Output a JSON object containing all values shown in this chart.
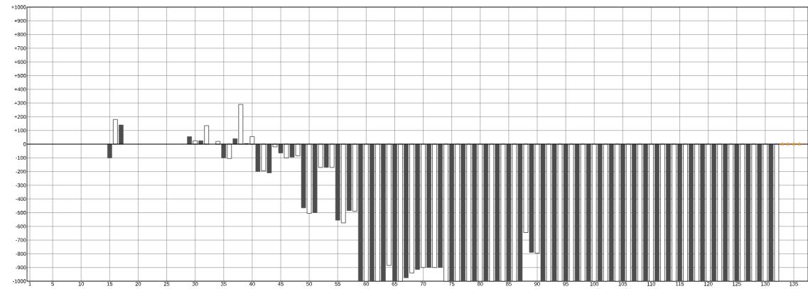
{
  "chart_data": {
    "type": "bar",
    "xlim": [
      0.5,
      137.5
    ],
    "xticks": [
      1,
      5,
      10,
      15,
      20,
      25,
      30,
      35,
      40,
      45,
      50,
      55,
      60,
      65,
      70,
      75,
      80,
      85,
      90,
      95,
      100,
      105,
      110,
      115,
      120,
      125,
      130,
      135
    ],
    "ylim": [
      -1000,
      1000
    ],
    "yticks": [
      {
        "value": 1000,
        "label": "+1000"
      },
      {
        "value": 900,
        "label": "+900"
      },
      {
        "value": 800,
        "label": "+800"
      },
      {
        "value": 700,
        "label": "+700"
      },
      {
        "value": 600,
        "label": "+600"
      },
      {
        "value": 500,
        "label": "+500"
      },
      {
        "value": 400,
        "label": "+400"
      },
      {
        "value": 300,
        "label": "+300"
      },
      {
        "value": 200,
        "label": "+200"
      },
      {
        "value": 100,
        "label": "+100"
      },
      0,
      -100,
      -200,
      -300,
      -400,
      -500,
      -600,
      -700,
      -800,
      -900,
      -1000
    ],
    "grid": true,
    "ref_lines": [
      {
        "axis": "y",
        "value": 0,
        "color": "#000000"
      }
    ],
    "series": [
      {
        "color": "#4d4d4d",
        "x": [
          15,
          17,
          29,
          31,
          35,
          37,
          39,
          41,
          43,
          45,
          47,
          49,
          51,
          53,
          55,
          57,
          59,
          61,
          63,
          65,
          67,
          69,
          71,
          73,
          75,
          77,
          79,
          81,
          83,
          85,
          87,
          89,
          91,
          93,
          95,
          97,
          99,
          101,
          103,
          105,
          107,
          109,
          111,
          113,
          115,
          117,
          119,
          121,
          123,
          125,
          127,
          129,
          131
        ],
        "values": [
          -100,
          140,
          55,
          25,
          -100,
          40,
          5,
          -200,
          -210,
          -65,
          -95,
          -465,
          -500,
          -170,
          -555,
          -485,
          -1000,
          -1000,
          -1000,
          -1000,
          -975,
          -915,
          -900,
          -900,
          -1000,
          -1000,
          -1000,
          -1000,
          -1000,
          -1000,
          -1000,
          -790,
          -1000,
          -1000,
          -1000,
          -1000,
          -1000,
          -1000,
          -1000,
          -1000,
          -1000,
          -1000,
          -1000,
          -1000,
          -1000,
          -1000,
          -1000,
          -1000,
          -1000,
          -1000,
          -1000,
          -1000,
          -1000
        ]
      },
      {
        "color": "#ffffff",
        "x": [
          16,
          30,
          32,
          34,
          36,
          38,
          40,
          42,
          44,
          46,
          48,
          50,
          52,
          54,
          56,
          58,
          60,
          62,
          64,
          66,
          68,
          70,
          72,
          74,
          76,
          78,
          80,
          82,
          84,
          86,
          88,
          90,
          92,
          94,
          96,
          98,
          100,
          102,
          104,
          106,
          108,
          110,
          112,
          114,
          116,
          118,
          120,
          122,
          124,
          126,
          128,
          130,
          132
        ],
        "values": [
          180,
          25,
          135,
          20,
          -105,
          290,
          55,
          -195,
          -20,
          -100,
          -85,
          -505,
          -170,
          -170,
          -575,
          -490,
          -1000,
          -1000,
          -885,
          -1000,
          -940,
          -900,
          -900,
          -1000,
          -1000,
          -1000,
          -1000,
          -1000,
          -1000,
          -1000,
          -645,
          -795,
          -1000,
          -1000,
          -1000,
          -1000,
          -1000,
          -1000,
          -1000,
          -1000,
          -1000,
          -1000,
          -1000,
          -1000,
          -1000,
          -1000,
          -1000,
          -1000,
          -1000,
          -1000,
          -1000,
          -1000,
          -1000
        ]
      },
      {
        "type": "scatter",
        "color": "#e0902a",
        "marker": "star",
        "x": [
          133,
          134,
          135,
          136
        ],
        "values": [
          0,
          0,
          0,
          0
        ]
      }
    ]
  }
}
